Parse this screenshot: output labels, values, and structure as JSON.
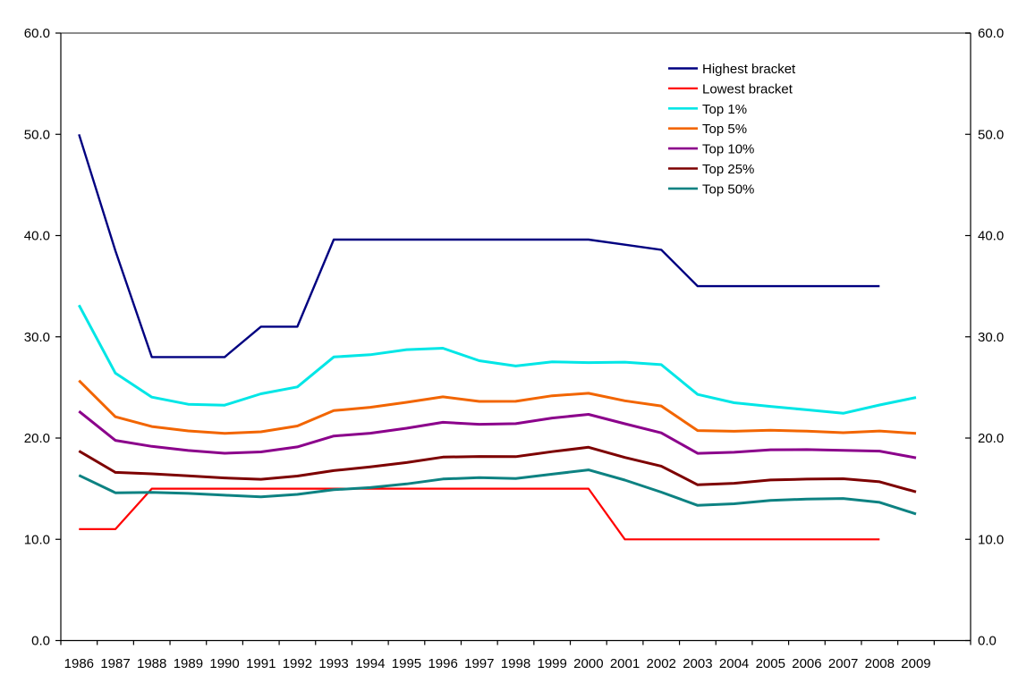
{
  "chart_data": {
    "type": "line",
    "title": "",
    "xlabel": "",
    "ylabel": "",
    "x_categories": [
      "1986",
      "1987",
      "1988",
      "1989",
      "1990",
      "1991",
      "1992",
      "1993",
      "1994",
      "1995",
      "1996",
      "1997",
      "1998",
      "1999",
      "2000",
      "2001",
      "2002",
      "2003",
      "2004",
      "2005",
      "2006",
      "2007",
      "2008",
      "2009"
    ],
    "series": [
      {
        "name": "Highest bracket",
        "color": "#000080",
        "width": 2.4,
        "values": [
          50.0,
          38.5,
          28.0,
          28.0,
          28.0,
          31.0,
          31.0,
          39.6,
          39.6,
          39.6,
          39.6,
          39.6,
          39.6,
          39.6,
          39.6,
          39.1,
          38.6,
          35.0,
          35.0,
          35.0,
          35.0,
          35.0,
          35.0,
          null
        ]
      },
      {
        "name": "Lowest bracket",
        "color": "#FF0000",
        "width": 2.2,
        "values": [
          11.0,
          11.0,
          15.0,
          15.0,
          15.0,
          15.0,
          15.0,
          15.0,
          15.0,
          15.0,
          15.0,
          15.0,
          15.0,
          15.0,
          15.0,
          10.0,
          10.0,
          10.0,
          10.0,
          10.0,
          10.0,
          10.0,
          10.0,
          null
        ]
      },
      {
        "name": "Top 1%",
        "color": "#00E6E6",
        "width": 3,
        "values": [
          33.13,
          26.41,
          24.04,
          23.34,
          23.25,
          24.37,
          25.05,
          28.01,
          28.23,
          28.73,
          28.87,
          27.64,
          27.12,
          27.53,
          27.45,
          27.5,
          27.25,
          24.31,
          23.49,
          23.13,
          22.79,
          22.45,
          23.27,
          24.01
        ]
      },
      {
        "name": "Top 5%",
        "color": "#F26500",
        "width": 3,
        "values": [
          25.68,
          22.1,
          21.14,
          20.71,
          20.46,
          20.62,
          21.19,
          22.71,
          23.04,
          23.53,
          24.07,
          23.62,
          23.63,
          24.18,
          24.42,
          23.68,
          23.17,
          20.74,
          20.67,
          20.78,
          20.68,
          20.53,
          20.7,
          20.46
        ]
      },
      {
        "name": "Top 10%",
        "color": "#8B008B",
        "width": 3,
        "values": [
          22.64,
          19.77,
          19.18,
          18.77,
          18.5,
          18.63,
          19.13,
          20.2,
          20.48,
          20.97,
          21.55,
          21.36,
          21.42,
          21.98,
          22.34,
          21.41,
          20.51,
          18.49,
          18.6,
          18.84,
          18.86,
          18.79,
          18.71,
          18.05
        ]
      },
      {
        "name": "Top 25%",
        "color": "#7D0000",
        "width": 3,
        "values": [
          18.72,
          16.61,
          16.47,
          16.27,
          16.06,
          15.93,
          16.25,
          16.79,
          17.15,
          17.58,
          18.12,
          18.18,
          18.16,
          18.66,
          19.09,
          18.08,
          17.23,
          15.38,
          15.53,
          15.86,
          15.95,
          15.98,
          15.68,
          14.68
        ]
      },
      {
        "name": "Top 50%",
        "color": "#0D8282",
        "width": 3,
        "values": [
          16.32,
          14.6,
          14.64,
          14.53,
          14.36,
          14.2,
          14.44,
          14.9,
          15.11,
          15.47,
          15.96,
          16.09,
          16.0,
          16.43,
          16.86,
          15.85,
          14.66,
          13.35,
          13.51,
          13.84,
          13.98,
          14.03,
          13.65,
          12.5
        ]
      }
    ],
    "y_axis_left_tick_labels": [
      "60.0",
      "50.0",
      "40.0",
      "30.0",
      "20.0",
      "10.0",
      "0.0"
    ],
    "y_axis_right_tick_labels": [
      "60.0",
      "50.0",
      "40.0",
      "30.0",
      "20.0",
      "10.0",
      "0.0"
    ],
    "ylim": [
      0,
      60
    ],
    "grid": false,
    "legend_position": "top-right-inside",
    "plot_border_top_color": "#8C8C8C",
    "axis_color": "#000000",
    "extra_trailing_blank_category": 1
  }
}
